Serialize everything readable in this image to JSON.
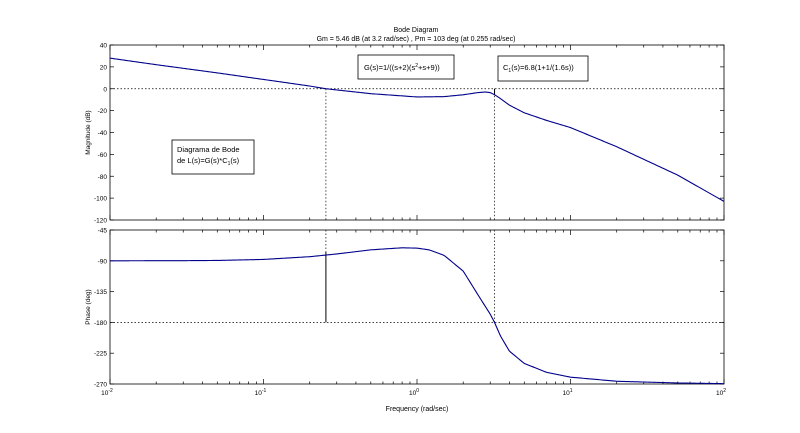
{
  "chart_data": {
    "type": "line",
    "title": "Bode Diagram",
    "subtitle": "Gm = 5.46 dB (at 3.2 rad/sec) ,  Pm = 103 deg (at 0.255 rad/sec)",
    "xlabel": "Frequency  (rad/sec)",
    "xscale": "log",
    "xlim": [
      0.01,
      100
    ],
    "x_ticks": [
      {
        "base": "10",
        "exp": "-2"
      },
      {
        "base": "10",
        "exp": "-1"
      },
      {
        "base": "10",
        "exp": "0"
      },
      {
        "base": "10",
        "exp": "1"
      },
      {
        "base": "10",
        "exp": "2"
      }
    ],
    "grid": false,
    "line_color": "#00008b",
    "margin_color": "#000000",
    "annotations": {
      "plant": {
        "pre": "G(s)=1/((s+2)(s",
        "sup": "2",
        "post": "+s+9))"
      },
      "controller": {
        "pre": "C",
        "sub": "1",
        "post": "(s)=6.8(1+1/(1.6s))"
      },
      "caption_line1": "Diagrama de Bode",
      "caption_line2": {
        "pre": "de L(s)=G(s)*C",
        "sub": "1",
        "post": "(s)"
      }
    },
    "magnitude": {
      "ylabel": "Magnitude (dB)",
      "ylim": [
        -120,
        40
      ],
      "yticks": [
        40,
        20,
        0,
        -20,
        -40,
        -60,
        -80,
        -100,
        -120
      ],
      "x": [
        0.01,
        0.02,
        0.05,
        0.1,
        0.2,
        0.255,
        0.5,
        1.0,
        1.5,
        2.0,
        2.5,
        2.8,
        3.0,
        3.2,
        3.5,
        4.0,
        5.0,
        7.0,
        10.0,
        20.0,
        50.0,
        100.0
      ],
      "y": [
        28.0,
        22.0,
        14.5,
        8.5,
        2.5,
        0.0,
        -4.5,
        -7.5,
        -7.2,
        -5.5,
        -3.5,
        -3.0,
        -3.5,
        -5.46,
        -9.0,
        -15.0,
        -22.0,
        -29.0,
        -35.5,
        -53.0,
        -79.0,
        -103.0
      ]
    },
    "phase": {
      "ylabel": "Phase (deg)",
      "ylim": [
        -270,
        -45
      ],
      "yticks": [
        -45,
        -90,
        -135,
        -180,
        -225,
        -270
      ],
      "x": [
        0.01,
        0.03,
        0.05,
        0.1,
        0.2,
        0.3,
        0.5,
        0.8,
        1.0,
        1.2,
        1.5,
        2.0,
        2.5,
        3.0,
        3.2,
        3.5,
        4.0,
        5.0,
        7.0,
        10.0,
        20.0,
        50.0,
        100.0
      ],
      "y": [
        -90.0,
        -89.8,
        -89.5,
        -88.0,
        -84.0,
        -80.0,
        -74.0,
        -71.0,
        -71.5,
        -74.0,
        -82.0,
        -105.0,
        -140.0,
        -168.0,
        -180.0,
        -200.0,
        -222.0,
        -240.0,
        -253.0,
        -260.0,
        -266.0,
        -268.5,
        -269.5
      ]
    },
    "margins": {
      "phase_crossover_w": 3.2,
      "gain_margin_db": 5.46,
      "gain_crossover_w": 0.255,
      "phase_at_gain_crossover": -77
    }
  }
}
